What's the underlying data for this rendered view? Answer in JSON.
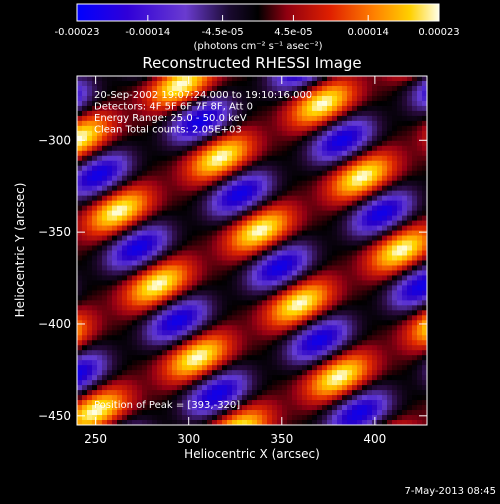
{
  "chart_data": {
    "type": "heatmap",
    "title": "Reconstructed RHESSI Image",
    "xlabel": "Heliocentric X (arcsec)",
    "ylabel": "Heliocentric Y (arcsec)",
    "xlim": [
      240,
      428
    ],
    "ylim": [
      -455,
      -265
    ],
    "xticks": [
      250,
      300,
      350,
      400
    ],
    "yticks": [
      -450,
      -400,
      -350,
      -300
    ],
    "annotations": [
      "20-Sep-2002 19:07:24.000 to 19:10:16.000",
      "Detectors: 4F 5F 6F 7F 8F, Att 0",
      "Energy Range: 25.0 - 50.0 keV",
      "Clean    Total counts: 2.05E+03"
    ],
    "peak_label": "Position of Peak = [393,-320]",
    "peak": {
      "x": 393,
      "y": -320
    },
    "colorbar": {
      "range": [
        -0.00023,
        0.00023
      ],
      "tick_labels": [
        "-0.00023",
        "-0.00014",
        "-4.5e-05",
        "4.5e-05",
        "0.00014",
        "0.00023"
      ],
      "unit_label": "(photons cm⁻² s⁻¹ asec⁻²)",
      "colormap": [
        "#0000ff",
        "#5a22c8",
        "#6a3bd0",
        "#000000",
        "#b01010",
        "#ff5000",
        "#ffc000",
        "#ffffe0"
      ]
    },
    "footer_date": "7-May-2013 08:45"
  }
}
